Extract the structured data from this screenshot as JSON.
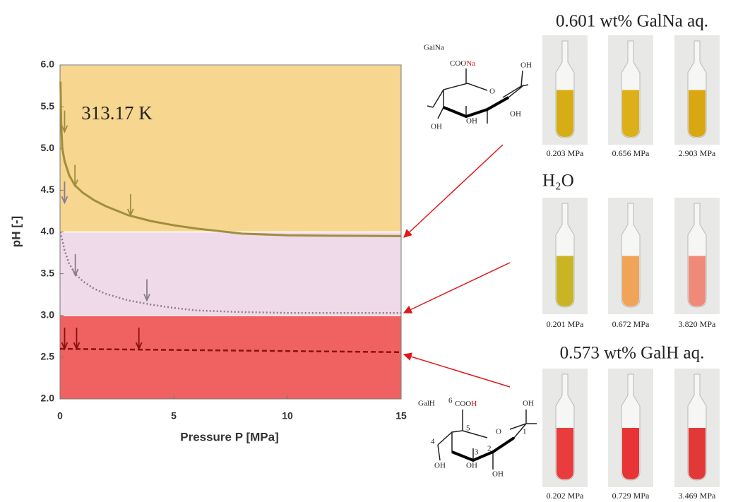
{
  "chart_data": {
    "type": "line",
    "xlabel": "Pressure P [MPa]",
    "ylabel": "pH [-]",
    "xlim": [
      0,
      15
    ],
    "ylim": [
      2,
      6
    ],
    "xticks": [
      0,
      5,
      10,
      15
    ],
    "yticks": [
      {
        "value": 2,
        "label": "2.0"
      },
      {
        "value": 2.5,
        "label": "2.5"
      },
      {
        "value": 3,
        "label": "3.0"
      },
      {
        "value": 3.5,
        "label": "3.5"
      },
      {
        "value": 4,
        "label": "4.0"
      },
      {
        "value": 4.5,
        "label": "4.5"
      },
      {
        "value": 5,
        "label": "5.0"
      },
      {
        "value": 5.5,
        "label": "5.5"
      },
      {
        "value": 6,
        "label": "6.0"
      }
    ],
    "annotation": {
      "text": "313.17 K",
      "x": 2.5,
      "y": 5.4
    },
    "bands": [
      {
        "from": 4,
        "to": 6,
        "color": "#f7d690"
      },
      {
        "from": 3,
        "to": 4,
        "color": "#efdaea"
      },
      {
        "from": 2,
        "to": 3,
        "color": "#f06262"
      }
    ],
    "series": [
      {
        "color": "#a08e3c",
        "style": "solid",
        "x": [
          0.02,
          0.05,
          0.1,
          0.2,
          0.4,
          0.65,
          1,
          1.5,
          2,
          3,
          4,
          5,
          6,
          7,
          8,
          10,
          12,
          15
        ],
        "values": [
          5.8,
          5.3,
          5.0,
          4.85,
          4.68,
          4.56,
          4.47,
          4.38,
          4.31,
          4.2,
          4.13,
          4.08,
          4.04,
          4.01,
          3.98,
          3.96,
          3.955,
          3.95
        ],
        "arrows_x": [
          0.2,
          0.656,
          3.1
        ],
        "arrows_y": [
          5.2,
          4.55,
          4.2
        ]
      },
      {
        "color": "#8a7c8c",
        "style": "dotted",
        "x": [
          0.02,
          0.1,
          0.2,
          0.4,
          0.67,
          1,
          1.5,
          2,
          3,
          4,
          5,
          6,
          7,
          8,
          10,
          15
        ],
        "values": [
          4.0,
          3.9,
          3.78,
          3.62,
          3.5,
          3.41,
          3.32,
          3.26,
          3.18,
          3.13,
          3.09,
          3.06,
          3.05,
          3.04,
          3.03,
          3.03
        ],
        "arrows_x": [
          0.2,
          0.672,
          3.82
        ],
        "arrows_y": [
          4.35,
          3.48,
          3.18
        ]
      },
      {
        "color": "#8b1010",
        "style": "dashed",
        "x": [
          0,
          15
        ],
        "values": [
          2.6,
          2.56
        ],
        "arrows_x": [
          0.202,
          0.729,
          3.469
        ],
        "arrows_y": [
          2.6,
          2.6,
          2.6
        ]
      }
    ]
  },
  "structures": [
    {
      "name": "GalNa",
      "group": "COO",
      "counterion": "Na",
      "ring_o": "O",
      "oh": [
        "OH",
        "OH",
        "OH",
        "OH"
      ]
    },
    {
      "name": "GalH",
      "group": "COO",
      "counterion": "H",
      "ring_o": "O",
      "oh": [
        "OH",
        "OH",
        "OH",
        "OH"
      ],
      "numbers": [
        "6",
        "5",
        "4",
        "3",
        "2",
        "1"
      ]
    }
  ],
  "photos": [
    {
      "title": "0.601 wt% GalNa aq.",
      "samples": [
        {
          "label": "0.203 MPa",
          "liquid": "#d6ad12"
        },
        {
          "label": "0.656 MPa",
          "liquid": "#dcb018"
        },
        {
          "label": "2.903 MPa",
          "liquid": "#d9a810"
        }
      ]
    },
    {
      "title": "H₂O",
      "samples": [
        {
          "label": "0.201 MPa",
          "liquid": "#c9b424"
        },
        {
          "label": "0.672 MPa",
          "liquid": "#f0a458"
        },
        {
          "label": "3.820 MPa",
          "liquid": "#f08a78"
        }
      ]
    },
    {
      "title": "0.573 wt% GalH aq.",
      "samples": [
        {
          "label": "0.202 MPa",
          "liquid": "#ea3c3c"
        },
        {
          "label": "0.729 MPa",
          "liquid": "#e83434"
        },
        {
          "label": "3.469 MPa",
          "liquid": "#e23838"
        }
      ]
    }
  ]
}
